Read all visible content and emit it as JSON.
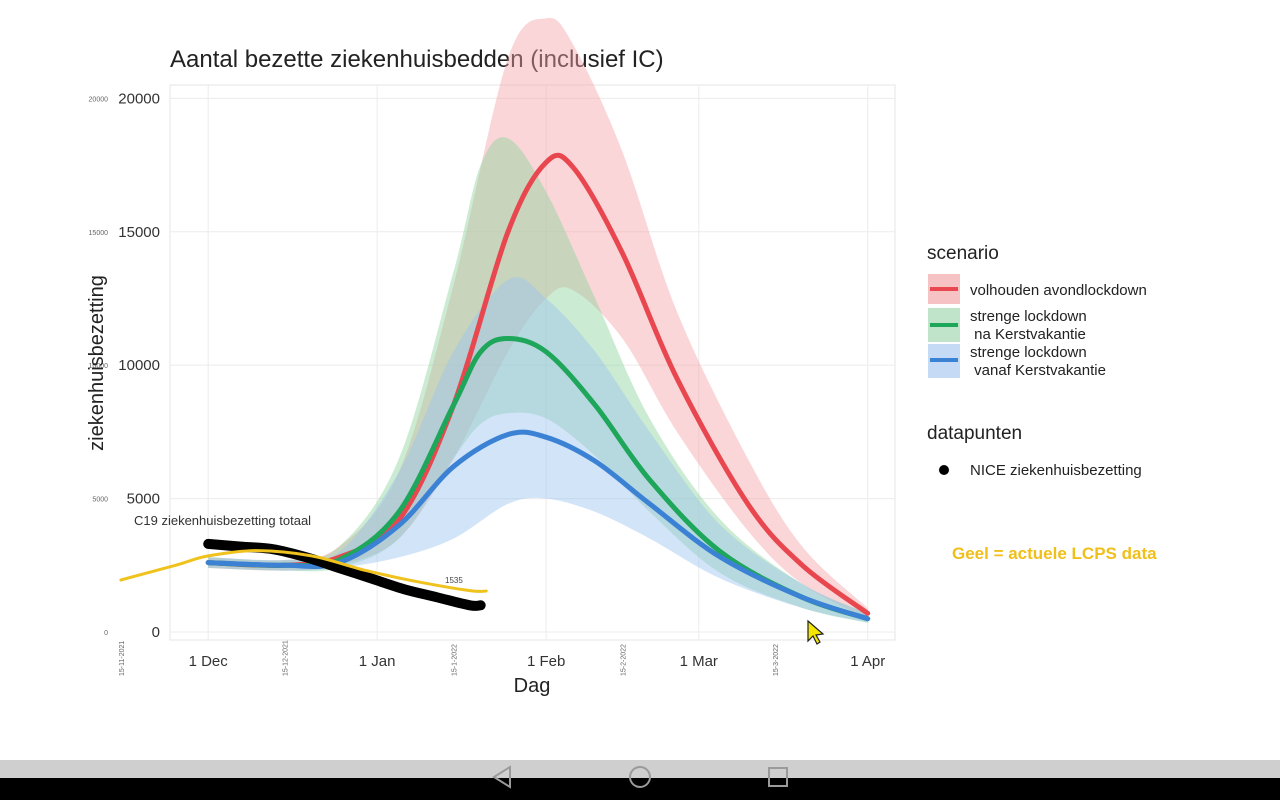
{
  "chart_data": {
    "type": "line",
    "title": "Aantal bezette ziekenhuisbedden (inclusief IC)",
    "xlabel": "Dag",
    "ylabel": "ziekenhuisbezetting",
    "ylim": [
      -300,
      20500
    ],
    "xlim": [
      "2021-11-24",
      "2022-04-06"
    ],
    "y_ticks": [
      0,
      5000,
      10000,
      15000,
      20000
    ],
    "y_tick_labels": [
      "0",
      "5000",
      "10000",
      "15000",
      "20000"
    ],
    "y_tick_small_labels": [
      "0",
      "5000",
      "10000",
      "15000",
      "20000"
    ],
    "x_ticks": [
      {
        "date": "2021-12-01",
        "label": "1 Dec"
      },
      {
        "date": "2022-01-01",
        "label": "1 Jan"
      },
      {
        "date": "2022-02-01",
        "label": "1 Feb"
      },
      {
        "date": "2022-03-01",
        "label": "1 Mar"
      },
      {
        "date": "2022-04-01",
        "label": "1 Apr"
      }
    ],
    "x_overlay_labels": [
      {
        "date": "2021-11-15",
        "label": "15-11-2021"
      },
      {
        "date": "2021-12-15",
        "label": "15-12-2021"
      },
      {
        "date": "2022-01-15",
        "label": "15-1-2022"
      },
      {
        "date": "2022-02-15",
        "label": "15-2-2022"
      },
      {
        "date": "2022-03-15",
        "label": "15-3-2022"
      }
    ],
    "grid": true,
    "legend_position": "right",
    "legend": {
      "scenario_title": "scenario",
      "scenario_items": [
        {
          "label": "volhouden avondlockdown",
          "color": "#e8474f"
        },
        {
          "label": "strenge lockdown",
          "label2": " na Kerstvakantie",
          "color": "#1ea65a"
        },
        {
          "label": "strenge lockdown",
          "label2": " vanaf Kerstvakantie",
          "color": "#3b82d4"
        }
      ],
      "datapoints_title": "datapunten",
      "datapoints_items": [
        {
          "label": "NICE ziekenhuisbezetting",
          "color": "#000000"
        }
      ]
    },
    "series": [
      {
        "name": "volhouden avondlockdown",
        "color": "#e8474f",
        "x": [
          "2021-12-01",
          "2021-12-15",
          "2021-12-25",
          "2022-01-05",
          "2022-01-15",
          "2022-01-25",
          "2022-02-01",
          "2022-02-06",
          "2022-02-15",
          "2022-02-25",
          "2022-03-10",
          "2022-03-20",
          "2022-04-01"
        ],
        "values": [
          2600,
          2500,
          2800,
          4200,
          8500,
          15000,
          17600,
          17400,
          14200,
          9500,
          4800,
          2500,
          700
        ],
        "lower": [
          2400,
          2300,
          2500,
          3500,
          6500,
          10500,
          12500,
          12800,
          11000,
          7500,
          3800,
          1800,
          500
        ],
        "upper": [
          2800,
          2700,
          3200,
          6000,
          13000,
          21500,
          23000,
          22000,
          18000,
          12000,
          6500,
          3200,
          900
        ]
      },
      {
        "name": "strenge lockdown na Kerstvakantie",
        "color": "#1ea65a",
        "x": [
          "2021-12-01",
          "2021-12-15",
          "2021-12-25",
          "2022-01-05",
          "2022-01-15",
          "2022-01-20",
          "2022-01-25",
          "2022-02-01",
          "2022-02-10",
          "2022-02-20",
          "2022-03-05",
          "2022-03-20",
          "2022-04-01"
        ],
        "values": [
          2600,
          2500,
          2700,
          4500,
          8500,
          10500,
          11000,
          10500,
          8500,
          5700,
          3000,
          1300,
          500
        ],
        "lower": [
          2400,
          2300,
          2400,
          3500,
          6500,
          7800,
          8200,
          8000,
          6600,
          4500,
          2200,
          900,
          350
        ],
        "upper": [
          2800,
          2700,
          3200,
          6500,
          13500,
          17500,
          18500,
          16500,
          12500,
          8000,
          4200,
          1800,
          700
        ]
      },
      {
        "name": "strenge lockdown vanaf Kerstvakantie",
        "color": "#3b82d4",
        "x": [
          "2021-12-01",
          "2021-12-15",
          "2021-12-25",
          "2022-01-05",
          "2022-01-15",
          "2022-01-25",
          "2022-02-01",
          "2022-02-10",
          "2022-02-20",
          "2022-03-05",
          "2022-03-20",
          "2022-04-01"
        ],
        "values": [
          2600,
          2500,
          2600,
          4000,
          6200,
          7400,
          7300,
          6400,
          4800,
          2800,
          1300,
          500
        ],
        "lower": [
          2400,
          2300,
          2400,
          2800,
          3500,
          4800,
          5000,
          4500,
          3500,
          2000,
          900,
          350
        ],
        "upper": [
          2800,
          2700,
          3000,
          6000,
          10500,
          13200,
          12500,
          10500,
          7500,
          4000,
          1800,
          700
        ]
      },
      {
        "name": "NICE ziekenhuisbezetting",
        "color": "#000000",
        "x": [
          "2021-12-01",
          "2021-12-07",
          "2021-12-13",
          "2021-12-19",
          "2021-12-25",
          "2021-12-31",
          "2022-01-06",
          "2022-01-12",
          "2022-01-18",
          "2022-01-20"
        ],
        "values": [
          3300,
          3200,
          3100,
          2800,
          2400,
          2000,
          1600,
          1300,
          1000,
          1000
        ]
      },
      {
        "name": "C19 ziekenhuisbezetting  totaal",
        "color": "#f0c21e",
        "x": [
          "2021-11-15",
          "2021-11-25",
          "2021-12-01",
          "2021-12-10",
          "2021-12-20",
          "2021-12-30",
          "2022-01-08",
          "2022-01-18",
          "2022-01-21"
        ],
        "values": [
          1950,
          2500,
          2850,
          3050,
          2850,
          2300,
          1900,
          1550,
          1535
        ]
      }
    ],
    "annotations": {
      "c19_label": "C19 ziekenhuisbezetting  totaal",
      "c19_end_value": "1535",
      "note": "Geel = actuele LCPS data",
      "note_color": "#f0bf1a"
    }
  },
  "navbar": {
    "back_icon": "back-triangle-icon",
    "home_icon": "home-circle-icon",
    "recent_icon": "recent-square-icon"
  }
}
